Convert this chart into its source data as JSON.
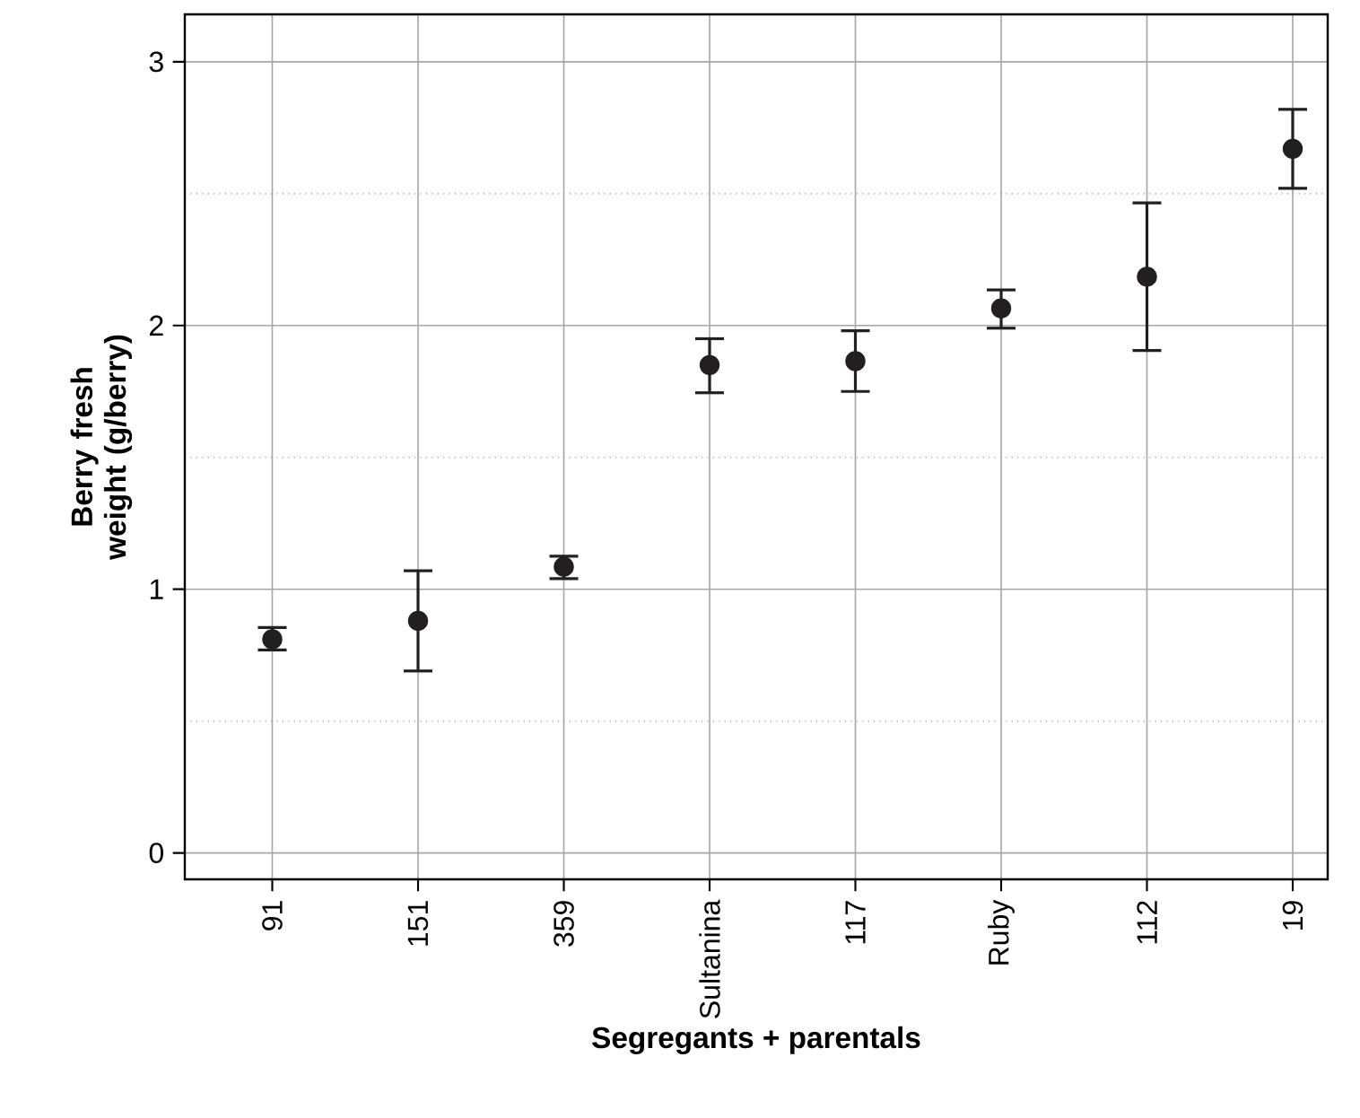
{
  "chart_data": {
    "type": "scatter",
    "xlabel": "Segregants + parentals",
    "ylabel": "Berry fresh weight (g/berry)",
    "categories": [
      "91",
      "151",
      "359",
      "Sultanina",
      "117",
      "Ruby",
      "112",
      "19"
    ],
    "values": [
      0.81,
      0.88,
      1.085,
      1.85,
      1.865,
      2.065,
      2.185,
      2.67
    ],
    "errors": [
      [
        0.77,
        0.855
      ],
      [
        0.69,
        1.07
      ],
      [
        1.04,
        1.125
      ],
      [
        1.745,
        1.95
      ],
      [
        1.75,
        1.98
      ],
      [
        1.99,
        2.135
      ],
      [
        1.905,
        2.465
      ],
      [
        2.52,
        2.82
      ]
    ],
    "color": "#231f20",
    "grid": true,
    "ylim": [
      -0.1,
      3.18
    ],
    "yticks": [
      0,
      {
        "value": 0.5,
        "label": null
      },
      1,
      {
        "value": 1.5,
        "label": null
      },
      2,
      {
        "value": 2.5,
        "label": null
      },
      3
    ]
  }
}
